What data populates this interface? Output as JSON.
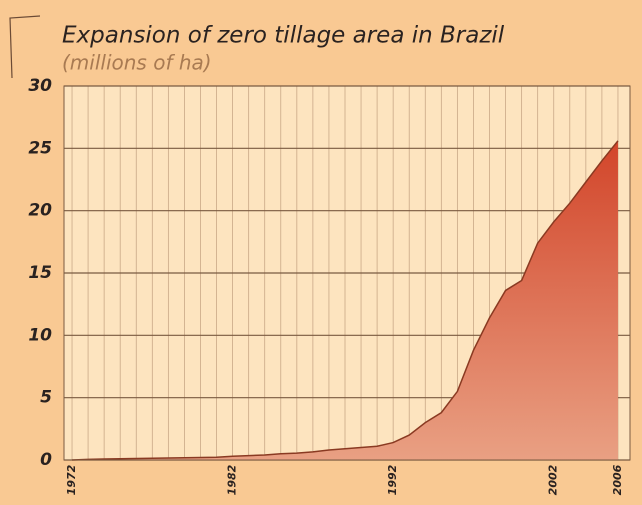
{
  "chart_data": {
    "type": "area",
    "title": "Expansion of zero tillage area in Brazil",
    "subtitle": "(millions of ha)",
    "x": [
      1972,
      1973,
      1974,
      1975,
      1976,
      1977,
      1978,
      1979,
      1980,
      1981,
      1982,
      1983,
      1984,
      1985,
      1986,
      1987,
      1988,
      1989,
      1990,
      1991,
      1992,
      1993,
      1994,
      1995,
      1996,
      1997,
      1998,
      1999,
      2000,
      2001,
      2002,
      2003,
      2004,
      2005,
      2006
    ],
    "values": [
      0,
      0.05,
      0.08,
      0.1,
      0.12,
      0.14,
      0.16,
      0.18,
      0.2,
      0.22,
      0.3,
      0.35,
      0.4,
      0.5,
      0.55,
      0.65,
      0.8,
      0.9,
      1.0,
      1.1,
      1.4,
      2.0,
      3.0,
      3.8,
      5.5,
      8.8,
      11.4,
      13.6,
      14.4,
      17.4,
      19.1,
      20.6,
      22.3,
      24.0,
      25.6
    ],
    "color": "#d2452a",
    "xlim": [
      1971.5,
      2006.75
    ],
    "xticks": [
      1972,
      1982,
      1992,
      2002,
      2006
    ],
    "ylim": [
      0,
      30
    ],
    "yticks": [
      0,
      5,
      10,
      15,
      20,
      25,
      30
    ],
    "grid": true
  }
}
